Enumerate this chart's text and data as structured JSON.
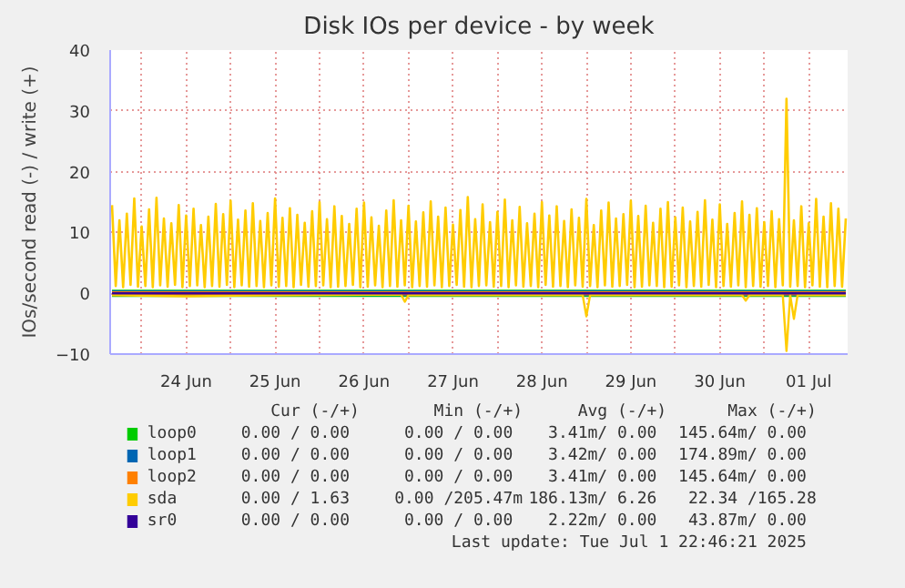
{
  "chart_data": {
    "type": "line",
    "title": "Disk IOs per device - by week",
    "ylabel": "IOs/second read (-) / write (+)",
    "xlim": [
      "2025-06-23T15:30",
      "2025-07-01T22:30"
    ],
    "ylim": [
      -10,
      40
    ],
    "yticks": [
      -10,
      0,
      10,
      20,
      30,
      40
    ],
    "xticks": [
      {
        "value": "2025-06-24T00:00",
        "label": null
      },
      {
        "value": "2025-06-24T12:00",
        "label": "24 Jun"
      },
      {
        "value": "2025-06-25T00:00",
        "label": null
      },
      {
        "value": "2025-06-25T12:00",
        "label": "25 Jun"
      },
      {
        "value": "2025-06-26T00:00",
        "label": null
      },
      {
        "value": "2025-06-26T12:00",
        "label": "26 Jun"
      },
      {
        "value": "2025-06-27T00:00",
        "label": null
      },
      {
        "value": "2025-06-27T12:00",
        "label": "27 Jun"
      },
      {
        "value": "2025-06-28T00:00",
        "label": null
      },
      {
        "value": "2025-06-28T12:00",
        "label": "28 Jun"
      },
      {
        "value": "2025-06-29T00:00",
        "label": null
      },
      {
        "value": "2025-06-29T12:00",
        "label": "29 Jun"
      },
      {
        "value": "2025-06-30T00:00",
        "label": null
      },
      {
        "value": "2025-06-30T12:00",
        "label": "30 Jun"
      },
      {
        "value": "2025-07-01T00:00",
        "label": null
      },
      {
        "value": "2025-07-01T12:00",
        "label": "01 Jul"
      }
    ],
    "grid": true,
    "legend": "bottom",
    "x": [
      "2025-06-23T16:00",
      "2025-06-23T17:00",
      "2025-06-23T18:00",
      "2025-06-23T19:00",
      "2025-06-23T20:00",
      "2025-06-23T21:00",
      "2025-06-23T22:00",
      "2025-06-23T23:00",
      "2025-06-24T00:00",
      "2025-06-24T01:00",
      "2025-06-24T02:00",
      "2025-06-24T03:00",
      "2025-06-24T04:00",
      "2025-06-24T05:00",
      "2025-06-24T06:00",
      "2025-06-24T07:00",
      "2025-06-24T08:00",
      "2025-06-24T09:00",
      "2025-06-24T10:00",
      "2025-06-24T11:00",
      "2025-06-24T12:00",
      "2025-06-24T13:00",
      "2025-06-24T14:00",
      "2025-06-24T15:00",
      "2025-06-24T16:00",
      "2025-06-24T17:00",
      "2025-06-24T18:00",
      "2025-06-24T19:00",
      "2025-06-24T20:00",
      "2025-06-24T21:00",
      "2025-06-24T22:00",
      "2025-06-24T23:00",
      "2025-06-25T00:00",
      "2025-06-25T01:00",
      "2025-06-25T02:00",
      "2025-06-25T03:00",
      "2025-06-25T04:00",
      "2025-06-25T05:00",
      "2025-06-25T06:00",
      "2025-06-25T07:00",
      "2025-06-25T08:00",
      "2025-06-25T09:00",
      "2025-06-25T10:00",
      "2025-06-25T11:00",
      "2025-06-25T12:00",
      "2025-06-25T13:00",
      "2025-06-25T14:00",
      "2025-06-25T15:00",
      "2025-06-25T16:00",
      "2025-06-25T17:00",
      "2025-06-25T18:00",
      "2025-06-25T19:00",
      "2025-06-25T20:00",
      "2025-06-25T21:00",
      "2025-06-25T22:00",
      "2025-06-25T23:00",
      "2025-06-26T00:00",
      "2025-06-26T01:00",
      "2025-06-26T02:00",
      "2025-06-26T03:00",
      "2025-06-26T04:00",
      "2025-06-26T05:00",
      "2025-06-26T06:00",
      "2025-06-26T07:00",
      "2025-06-26T08:00",
      "2025-06-26T09:00",
      "2025-06-26T10:00",
      "2025-06-26T11:00",
      "2025-06-26T12:00",
      "2025-06-26T13:00",
      "2025-06-26T14:00",
      "2025-06-26T15:00",
      "2025-06-26T16:00",
      "2025-06-26T17:00",
      "2025-06-26T18:00",
      "2025-06-26T19:00",
      "2025-06-26T20:00",
      "2025-06-26T21:00",
      "2025-06-26T22:00",
      "2025-06-26T23:00",
      "2025-06-27T00:00",
      "2025-06-27T01:00",
      "2025-06-27T02:00",
      "2025-06-27T03:00",
      "2025-06-27T04:00",
      "2025-06-27T05:00",
      "2025-06-27T06:00",
      "2025-06-27T07:00",
      "2025-06-27T08:00",
      "2025-06-27T09:00",
      "2025-06-27T10:00",
      "2025-06-27T11:00",
      "2025-06-27T12:00",
      "2025-06-27T13:00",
      "2025-06-27T14:00",
      "2025-06-27T15:00",
      "2025-06-27T16:00",
      "2025-06-27T17:00",
      "2025-06-27T18:00",
      "2025-06-27T19:00",
      "2025-06-27T20:00",
      "2025-06-27T21:00",
      "2025-06-27T22:00",
      "2025-06-27T23:00",
      "2025-06-28T00:00",
      "2025-06-28T01:00",
      "2025-06-28T02:00",
      "2025-06-28T03:00",
      "2025-06-28T04:00",
      "2025-06-28T05:00",
      "2025-06-28T06:00",
      "2025-06-28T07:00",
      "2025-06-28T08:00",
      "2025-06-28T09:00",
      "2025-06-28T10:00",
      "2025-06-28T11:00",
      "2025-06-28T12:00",
      "2025-06-28T13:00",
      "2025-06-28T14:00",
      "2025-06-28T15:00",
      "2025-06-28T16:00",
      "2025-06-28T17:00",
      "2025-06-28T18:00",
      "2025-06-28T19:00",
      "2025-06-28T20:00",
      "2025-06-28T21:00",
      "2025-06-28T22:00",
      "2025-06-28T23:00",
      "2025-06-29T00:00",
      "2025-06-29T01:00",
      "2025-06-29T02:00",
      "2025-06-29T03:00",
      "2025-06-29T04:00",
      "2025-06-29T05:00",
      "2025-06-29T06:00",
      "2025-06-29T07:00",
      "2025-06-29T08:00",
      "2025-06-29T09:00",
      "2025-06-29T10:00",
      "2025-06-29T11:00",
      "2025-06-29T12:00",
      "2025-06-29T13:00",
      "2025-06-29T14:00",
      "2025-06-29T15:00",
      "2025-06-29T16:00",
      "2025-06-29T17:00",
      "2025-06-29T18:00",
      "2025-06-29T19:00",
      "2025-06-29T20:00",
      "2025-06-29T21:00",
      "2025-06-29T22:00",
      "2025-06-29T23:00",
      "2025-06-30T00:00",
      "2025-06-30T01:00",
      "2025-06-30T02:00",
      "2025-06-30T03:00",
      "2025-06-30T04:00",
      "2025-06-30T05:00",
      "2025-06-30T06:00",
      "2025-06-30T07:00",
      "2025-06-30T08:00",
      "2025-06-30T09:00",
      "2025-06-30T10:00",
      "2025-06-30T11:00",
      "2025-06-30T12:00",
      "2025-06-30T13:00",
      "2025-06-30T14:00",
      "2025-06-30T15:00",
      "2025-06-30T16:00",
      "2025-06-30T17:00",
      "2025-06-30T18:00",
      "2025-06-30T19:00",
      "2025-06-30T20:00",
      "2025-06-30T21:00",
      "2025-06-30T22:00",
      "2025-06-30T23:00",
      "2025-07-01T00:00",
      "2025-07-01T01:00",
      "2025-07-01T02:00",
      "2025-07-01T03:00",
      "2025-07-01T04:00",
      "2025-07-01T05:00",
      "2025-07-01T06:00",
      "2025-07-01T07:00",
      "2025-07-01T08:00",
      "2025-07-01T09:00",
      "2025-07-01T10:00",
      "2025-07-01T11:00",
      "2025-07-01T12:00",
      "2025-07-01T13:00",
      "2025-07-01T14:00",
      "2025-07-01T15:00",
      "2025-07-01T16:00",
      "2025-07-01T17:00",
      "2025-07-01T18:00",
      "2025-07-01T19:00",
      "2025-07-01T20:00",
      "2025-07-01T21:00",
      "2025-07-01T22:00"
    ],
    "series": [
      {
        "name": "loop0",
        "color": "#00cc00",
        "x": [
          "2025-06-23T16:00",
          "2025-07-01T22:00"
        ],
        "values": [
          0,
          0
        ]
      },
      {
        "name": "loop1",
        "color": "#0066b3",
        "x": [
          "2025-06-23T16:00",
          "2025-07-01T22:00"
        ],
        "values": [
          0,
          0
        ]
      },
      {
        "name": "loop2",
        "color": "#ff8000",
        "x": [
          "2025-06-23T16:00",
          "2025-07-01T22:00"
        ],
        "values": [
          0,
          0
        ]
      },
      {
        "name": "sda",
        "color": "#ffcc00",
        "values": [
          14.5,
          1.2,
          12.0,
          1.0,
          13.1,
          1.4,
          15.6,
          1.1,
          11.0,
          1.2,
          13.8,
          1.0,
          15.7,
          1.3,
          12.3,
          1.1,
          11.5,
          1.4,
          14.5,
          1.0,
          12.8,
          1.2,
          13.9,
          1.3,
          11.2,
          1.0,
          12.6,
          1.2,
          14.7,
          1.1,
          13.0,
          1.4,
          15.2,
          1.0,
          12.1,
          1.3,
          13.6,
          1.1,
          14.8,
          1.2,
          11.9,
          1.0,
          13.2,
          1.3,
          15.6,
          1.1,
          12.4,
          1.2,
          14.0,
          1.0,
          12.9,
          1.4,
          11.6,
          1.1,
          13.5,
          1.2,
          15.0,
          1.3,
          12.2,
          1.0,
          14.3,
          1.1,
          12.7,
          1.2,
          11.4,
          1.4,
          13.9,
          1.0,
          14.9,
          1.1,
          12.5,
          1.3,
          11.1,
          1.0,
          13.6,
          1.2,
          15.3,
          1.1,
          12.0,
          1.3,
          14.4,
          1.0,
          11.8,
          1.2,
          13.3,
          1.1,
          15.1,
          1.3,
          12.6,
          1.0,
          14.1,
          1.2,
          11.3,
          1.4,
          13.7,
          1.1,
          15.8,
          1.0,
          12.2,
          1.2,
          14.6,
          1.3,
          11.7,
          1.1,
          13.4,
          1.2,
          15.4,
          1.0,
          12.0,
          1.3,
          14.2,
          1.1,
          11.5,
          1.2,
          13.1,
          1.0,
          15.0,
          1.4,
          12.8,
          1.1,
          14.3,
          1.2,
          11.9,
          1.0,
          13.8,
          1.3,
          12.4,
          1.1,
          15.5,
          1.2,
          11.2,
          1.0,
          13.6,
          1.3,
          14.9,
          1.1,
          12.3,
          1.2,
          13.0,
          1.4,
          15.2,
          1.0,
          12.7,
          1.1,
          14.4,
          1.3,
          11.6,
          1.2,
          13.9,
          1.0,
          15.0,
          1.1,
          12.5,
          1.3,
          14.1,
          1.0,
          11.8,
          1.2,
          13.4,
          1.1,
          15.3,
          1.4,
          12.1,
          1.0,
          14.6,
          1.2,
          11.4,
          1.1,
          13.2,
          1.3,
          15.1,
          1.0,
          12.9,
          1.2,
          14.0,
          1.1,
          11.7,
          1.2,
          13.5,
          1.0,
          12.2,
          1.3,
          32.0,
          1.1,
          12.0,
          1.2,
          14.3,
          1.0,
          11.5,
          1.3,
          15.5,
          1.1,
          12.6,
          1.0,
          14.8,
          1.2,
          13.9,
          1.1,
          12.3
        ]
      },
      {
        "color": "#ffcc00",
        "x": [
          "2025-06-23T16:00",
          "2025-06-24T12:00",
          "2025-06-25T00:00",
          "2025-06-26T22:00",
          "2025-06-26T23:00",
          "2025-06-27T00:00",
          "2025-06-28T23:00",
          "2025-06-29T00:00",
          "2025-06-29T01:00",
          "2025-06-30T18:00",
          "2025-06-30T19:00",
          "2025-06-30T20:00",
          "2025-07-01T05:00",
          "2025-07-01T06:00",
          "2025-07-01T07:00",
          "2025-07-01T08:00",
          "2025-07-01T09:00",
          "2025-07-01T22:00"
        ],
        "values": [
          -0.3,
          -0.5,
          -0.4,
          -0.2,
          -1.4,
          -0.3,
          -0.3,
          -3.8,
          -0.3,
          -0.3,
          -1.2,
          -0.3,
          -0.3,
          -9.5,
          -0.3,
          -4.2,
          -0.3,
          -0.3
        ]
      },
      {
        "name": "sr0",
        "color": "#330099",
        "x": [
          "2025-06-23T16:00",
          "2025-07-01T22:00"
        ],
        "values": [
          0,
          0
        ]
      }
    ],
    "annotations": [
      "Cur (-/+)",
      "Min (-/+)",
      "Avg (-/+)",
      "Max (-/+)",
      "0.00 /  0.00",
      "0.00 /  0.00",
      "3.41m/  0.00",
      "145.64m/  0.00",
      "0.00 /  0.00",
      "0.00 /  0.00",
      "3.42m/  0.00",
      "174.89m/  0.00",
      "0.00 /  0.00",
      "0.00 /  0.00",
      "3.41m/  0.00",
      "145.64m/  0.00",
      "0.00 /  1.63",
      "0.00 /205.47m",
      "186.13m/  6.26",
      "22.34 /165.28",
      "0.00 /  0.00",
      "0.00 /  0.00",
      "2.22m/  0.00",
      "43.87m/  0.00",
      "Last update: Tue Jul  1 22:46:21 2025"
    ]
  }
}
